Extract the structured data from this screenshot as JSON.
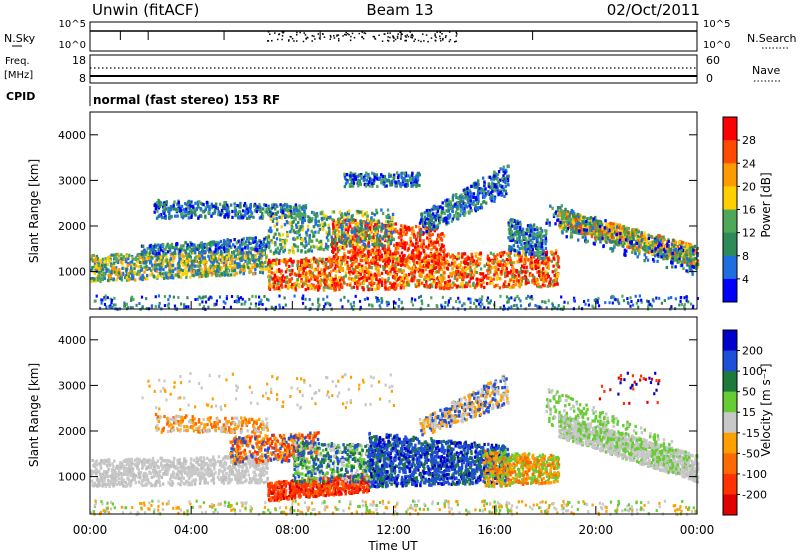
{
  "header": {
    "station": "Unwin (fitACF)",
    "beam": "Beam 13",
    "date": "02/Oct/2011"
  },
  "top_panels": {
    "nsky_label": "N.Sky",
    "nsky_ticks": [
      "10^5",
      "10^0"
    ],
    "nsearch_label": "N.Search",
    "nsearch_ticks": [
      "10^5",
      "10^0"
    ],
    "freq_label_1": "Freq.",
    "freq_label_2": "[MHz]",
    "freq_ticks": [
      "18",
      "8"
    ],
    "nave_label": "Nave",
    "nave_ticks": [
      "60",
      "0"
    ],
    "cpid_label": "CPID",
    "cpid_text": "normal (fast stereo) 153 RF"
  },
  "chart_data": [
    {
      "type": "heatmap",
      "name": "power",
      "xlabel": "",
      "ylabel": "Slant Range [km]",
      "yticks": [
        "1000",
        "2000",
        "3000",
        "4000"
      ],
      "ylim": [
        180,
        4500
      ],
      "xlim": [
        "00:00",
        "24:00"
      ],
      "colorbar": {
        "label": "Power [dB]",
        "ticks": [
          "4",
          "8",
          "12",
          "16",
          "20",
          "24",
          "28"
        ],
        "range": [
          0,
          32
        ],
        "colors": [
          "#0000ff",
          "#1e6ee0",
          "#2e8b57",
          "#4fa85a",
          "#ffd000",
          "#ff9a00",
          "#ff4a00",
          "#ff0000"
        ]
      }
    },
    {
      "type": "heatmap",
      "name": "velocity",
      "xlabel": "Time UT",
      "ylabel": "Slant Range [km]",
      "xticks": [
        "00:00",
        "04:00",
        "08:00",
        "12:00",
        "16:00",
        "20:00",
        "00:00"
      ],
      "yticks": [
        "1000",
        "2000",
        "3000",
        "4000"
      ],
      "ylim": [
        180,
        4500
      ],
      "colorbar": {
        "label": "Velocity [m s⁻¹]",
        "ticks": [
          "200",
          "100",
          "50",
          "15",
          "-15",
          "-50",
          "-100",
          "-200"
        ],
        "colors": [
          "#0000cc",
          "#1e4fd8",
          "#1e7a3a",
          "#66cc33",
          "#c8c8c8",
          "#ffa000",
          "#ff6a00",
          "#ff3300",
          "#e00000"
        ]
      }
    }
  ]
}
